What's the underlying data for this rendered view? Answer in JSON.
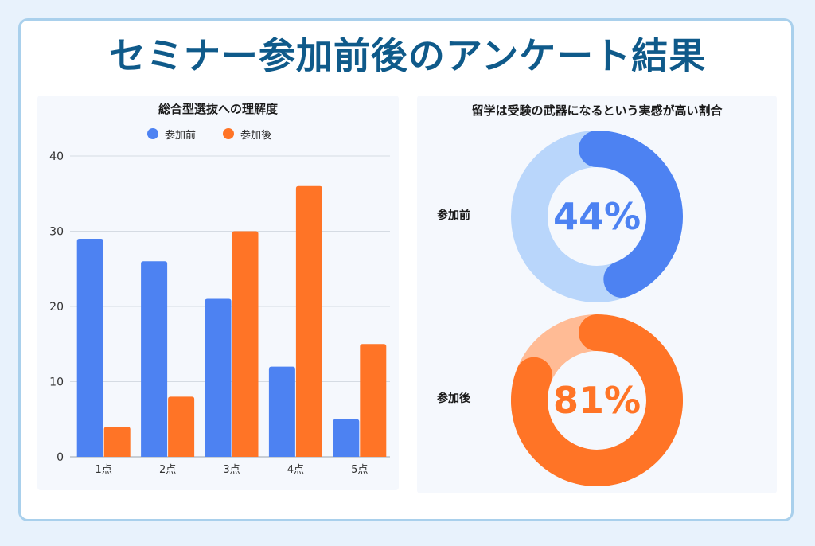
{
  "title": "セミナー参加前後のアンケート結果",
  "colors": {
    "before": "#4d82f2",
    "after": "#ff7426",
    "before_light": "#b9d6fb",
    "after_light": "#ffbb95"
  },
  "chart_data": [
    {
      "type": "bar",
      "title": "総合型選抜への理解度",
      "categories": [
        "1点",
        "2点",
        "3点",
        "4点",
        "5点"
      ],
      "series": [
        {
          "name": "参加前",
          "values": [
            29,
            26,
            21,
            12,
            5
          ]
        },
        {
          "name": "参加後",
          "values": [
            4,
            8,
            30,
            36,
            15
          ]
        }
      ],
      "yticks": [
        "0",
        "10",
        "20",
        "30",
        "40"
      ],
      "ylim": [
        0,
        40
      ],
      "grid": true,
      "legend": "top"
    },
    {
      "type": "pie",
      "title": "留学は受験の武器になるという実感が高い割合",
      "items": [
        {
          "label": "参加前",
          "value": 44,
          "display": "44%"
        },
        {
          "label": "参加後",
          "value": 81,
          "display": "81%"
        }
      ]
    }
  ]
}
